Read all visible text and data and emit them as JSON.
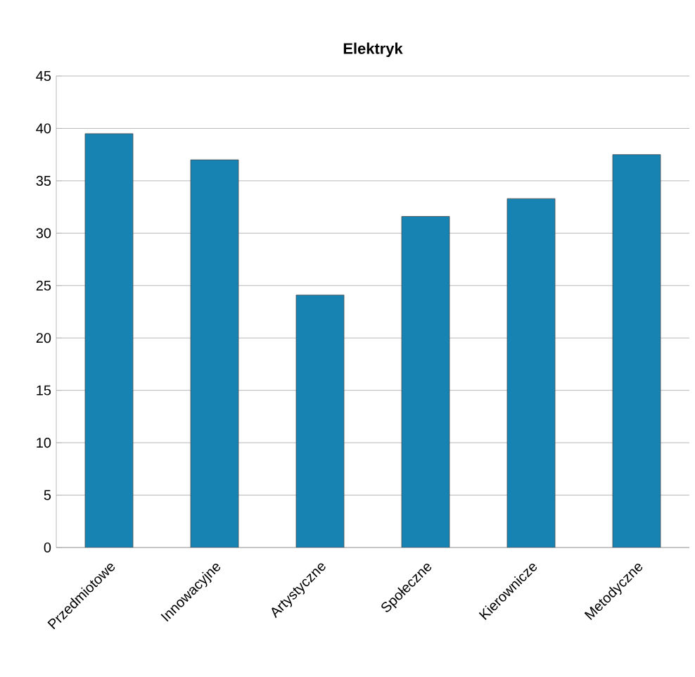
{
  "chart_data": {
    "type": "bar",
    "title": "Elektryk",
    "categories": [
      "Przedmiotowe",
      "Innowacyjne",
      "Artystyczne",
      "Społeczne",
      "Kierownicze",
      "Metodyczne"
    ],
    "values": [
      39.5,
      37.0,
      24.1,
      31.6,
      33.3,
      37.5
    ],
    "color": "#1683b3",
    "ylim": [
      0,
      45
    ],
    "yticks": [
      0,
      5,
      10,
      15,
      20,
      25,
      30,
      35,
      40,
      45
    ],
    "grid": "y"
  }
}
